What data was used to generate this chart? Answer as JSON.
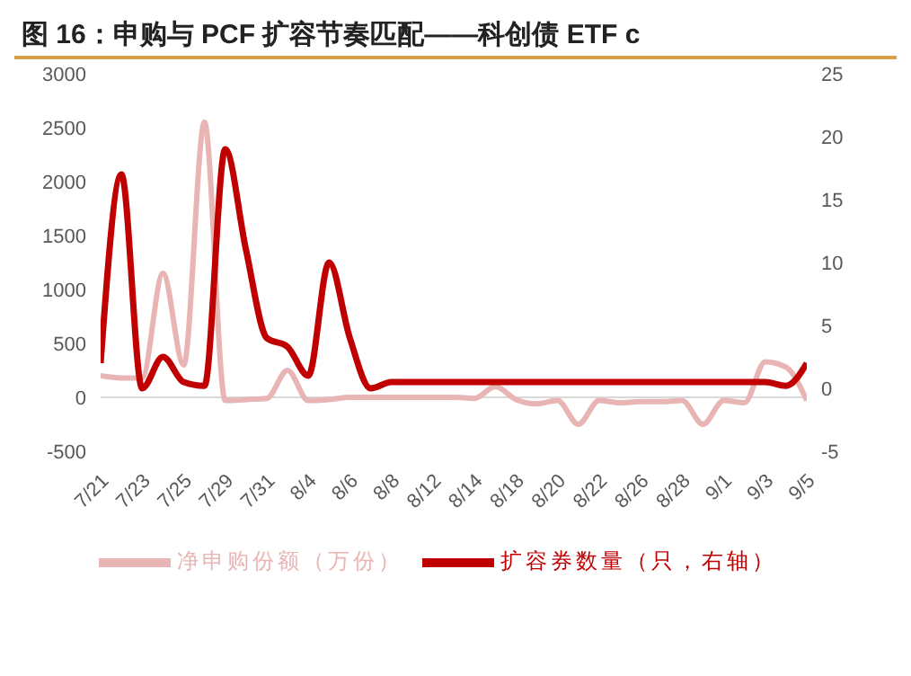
{
  "chart_data": {
    "type": "line",
    "title": "图 16：申购与 PCF 扩容节奏匹配——科创债 ETF c",
    "categories": [
      "7/21",
      null,
      "7/23",
      null,
      "7/25",
      null,
      "7/29",
      null,
      "7/31",
      null,
      "8/4",
      null,
      "8/6",
      null,
      "8/8",
      null,
      "8/12",
      null,
      "8/14",
      null,
      "8/18",
      null,
      "8/20",
      null,
      "8/22",
      null,
      "8/26",
      null,
      "8/28",
      null,
      "9/1",
      null,
      "9/3",
      null,
      "9/5"
    ],
    "series": [
      {
        "name": "净申购份额（万份）",
        "color": "#e8b4b4",
        "values": [
          200,
          180,
          180,
          1150,
          300,
          2550,
          -30,
          -20,
          -10,
          250,
          -30,
          -20,
          0,
          0,
          0,
          0,
          0,
          0,
          -10,
          100,
          -20,
          -60,
          -30,
          -250,
          -30,
          -50,
          -40,
          -40,
          -30,
          -250,
          -30,
          -50,
          330,
          280,
          -30
        ]
      },
      {
        "name": "扩容券数量（只，右轴）",
        "color": "#c00000",
        "axis": "y2",
        "values": [
          2,
          17,
          0,
          2.5,
          0.5,
          0.2,
          19,
          11,
          4,
          3.3,
          1,
          10,
          4,
          0,
          0.5,
          0.5,
          0.5,
          0.5,
          0.5,
          0.5,
          0.5,
          0.5,
          0.5,
          0.5,
          0.5,
          0.5,
          0.5,
          0.5,
          0.5,
          0.5,
          0.5,
          0.5,
          0.5,
          0.2,
          2
        ]
      }
    ],
    "ylim": [
      -500,
      3000
    ],
    "yticks": [
      -500,
      0,
      500,
      1000,
      1500,
      2000,
      2500,
      3000
    ],
    "y2lim": [
      -5,
      25
    ],
    "y2ticks": [
      -5,
      0,
      5,
      10,
      15,
      20,
      25
    ],
    "ref_lines": [
      {
        "axis": "y",
        "value": 0,
        "color": "#d9d9d9"
      }
    ],
    "legend": "bottom"
  }
}
